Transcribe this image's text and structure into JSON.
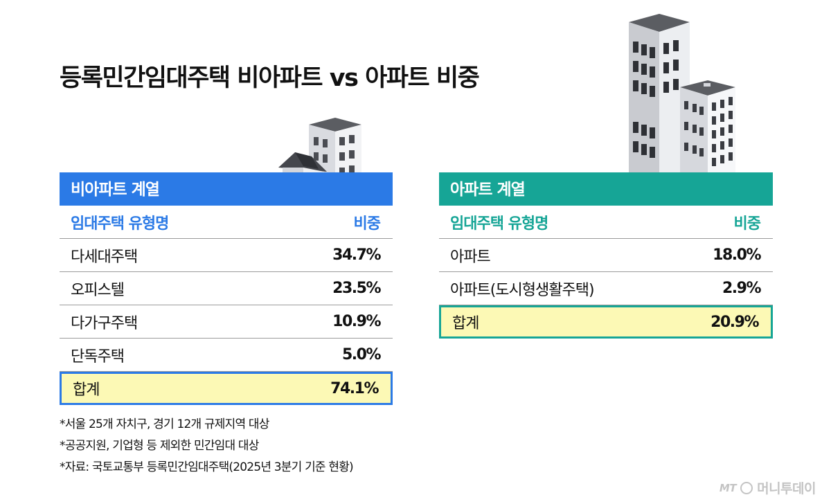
{
  "title": "등록민간임대주택 비아파트 vs 아파트 비중",
  "left_table": {
    "header": "비아파트 계열",
    "col_type": "임대주택 유형명",
    "col_share": "비중",
    "rows": [
      {
        "name": "다세대주택",
        "value": "34.7%"
      },
      {
        "name": "오피스텔",
        "value": "23.5%"
      },
      {
        "name": "다가구주택",
        "value": "10.9%"
      },
      {
        "name": "단독주택",
        "value": "5.0%"
      }
    ],
    "total": {
      "name": "합계",
      "value": "74.1%"
    }
  },
  "right_table": {
    "header": "아파트 계열",
    "col_type": "임대주택 유형명",
    "col_share": "비중",
    "rows": [
      {
        "name": "아파트",
        "value": "18.0%"
      },
      {
        "name": "아파트(도시형생활주택)",
        "value": "2.9%"
      }
    ],
    "total": {
      "name": "합계",
      "value": "20.9%"
    }
  },
  "notes": [
    "*서울 25개 자치구, 경기 12개 규제지역 대상",
    "*공공지원, 기업형 등 제외한 민간임대 대상",
    "*자료: 국토교통부 등록민간임대주택(2025년 3분기 기준 현황)"
  ],
  "logo": {
    "mt": "MT",
    "text": "머니투데이"
  },
  "colors": {
    "blue": "#2b7ae6",
    "teal": "#16a596",
    "highlight": "#fcf9b5"
  },
  "icons": {
    "left": "house-and-small-building-icon",
    "right": "apartment-towers-icon"
  }
}
